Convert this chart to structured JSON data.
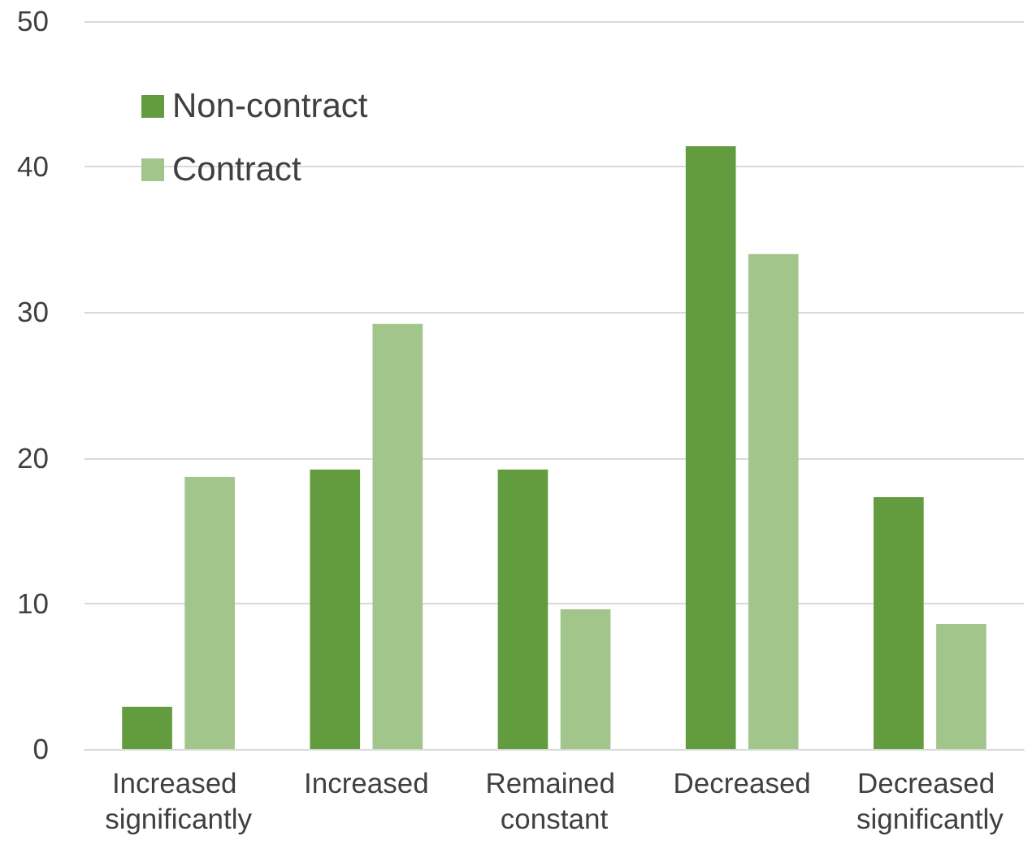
{
  "chart_data": {
    "type": "bar",
    "categories": [
      "Increased significantly",
      "Increased",
      "Remained constant",
      "Decreased",
      "Decreased significantly"
    ],
    "series": [
      {
        "name": "Non-contract",
        "color": "#629c3f",
        "values": [
          2.9,
          19.2,
          19.2,
          41.4,
          17.3
        ]
      },
      {
        "name": "Contract",
        "color": "#a2c58c",
        "values": [
          18.7,
          29.2,
          9.6,
          34.0,
          8.6
        ]
      }
    ],
    "ylim": [
      0,
      50
    ],
    "yticks": [
      0,
      10,
      20,
      30,
      40,
      50
    ],
    "grid": "y",
    "legend": "top left"
  }
}
